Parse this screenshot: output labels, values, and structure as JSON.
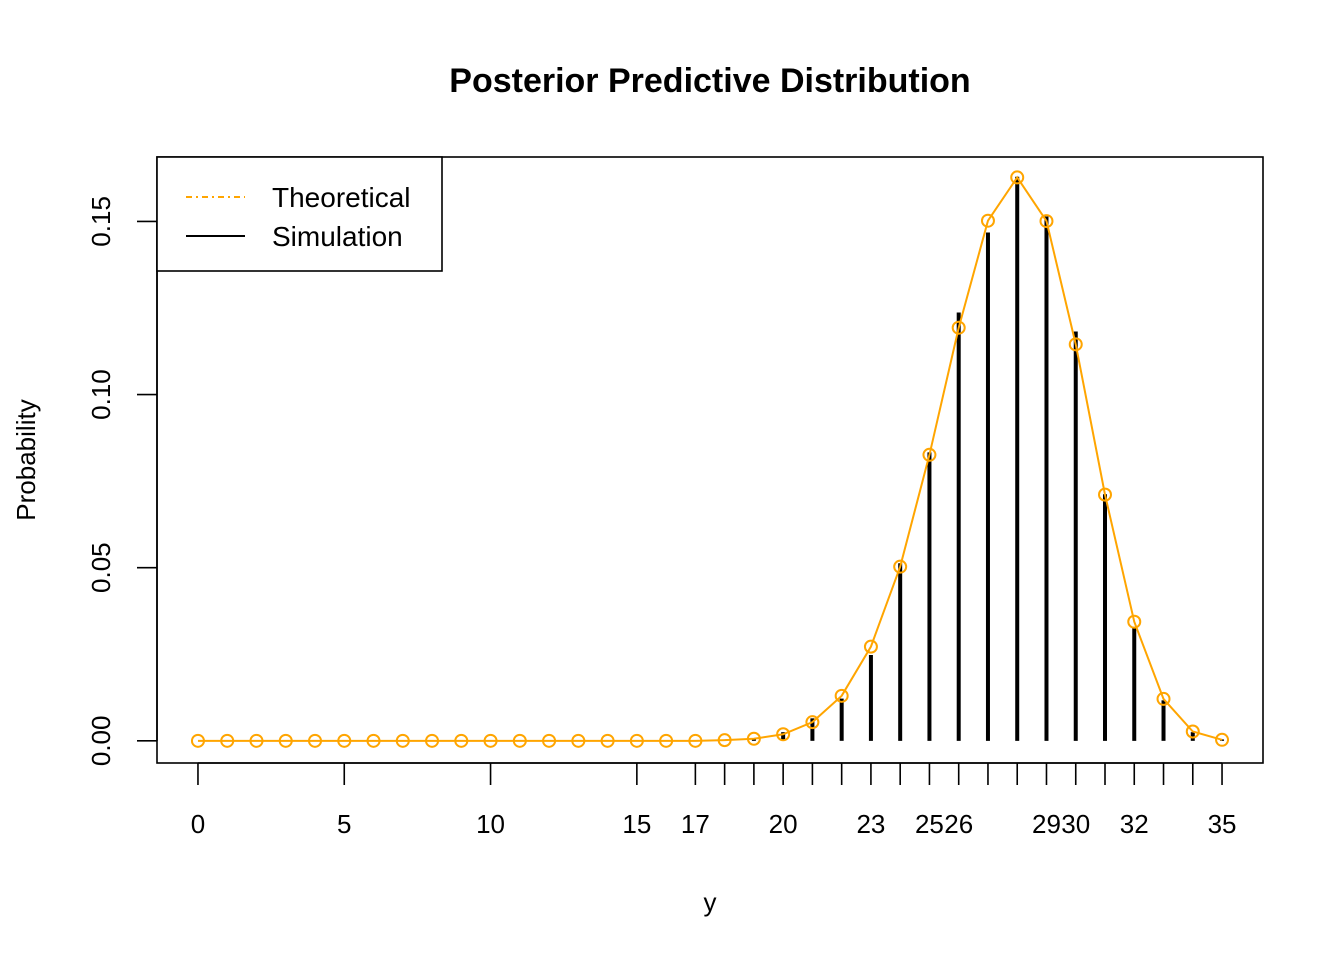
{
  "chart_data": {
    "type": "line",
    "title": "Posterior Predictive Distribution",
    "xlabel": "y",
    "ylabel": "Probability",
    "xlim": [
      -1.4,
      36.4
    ],
    "ylim": [
      -0.0064,
      0.1686
    ],
    "x_ticks": [
      0,
      5,
      10,
      15,
      17,
      18,
      19,
      20,
      21,
      22,
      23,
      24,
      25,
      26,
      27,
      28,
      29,
      30,
      31,
      32,
      33,
      34,
      35
    ],
    "x_tick_labels": [
      "0",
      "5",
      "10",
      "15",
      "17",
      "",
      "",
      "20",
      "",
      "",
      "23",
      "",
      "25",
      "26",
      "",
      "",
      "29",
      "30",
      "",
      "32",
      "",
      "",
      "35"
    ],
    "y_ticks": [
      0.0,
      0.05,
      0.1,
      0.15
    ],
    "y_tick_labels": [
      "0.00",
      "0.05",
      "0.10",
      "0.15"
    ],
    "grid": false,
    "legend_position": "top-left",
    "legend": [
      {
        "label": "Theoretical",
        "style": "dash-dot",
        "color": "#FFA500"
      },
      {
        "label": "Simulation",
        "style": "solid",
        "color": "#000000"
      }
    ],
    "series": [
      {
        "name": "Theoretical",
        "color": "#FFA500",
        "marker": "open-circle",
        "x": [
          0,
          1,
          2,
          3,
          4,
          5,
          6,
          7,
          8,
          9,
          10,
          11,
          12,
          13,
          14,
          15,
          16,
          17,
          18,
          19,
          20,
          21,
          22,
          23,
          24,
          25,
          26,
          27,
          28,
          29,
          30,
          31,
          32,
          33,
          34,
          35
        ],
        "y": [
          0,
          0,
          0,
          0,
          0,
          0,
          0,
          0,
          0,
          0,
          0,
          0,
          0,
          0,
          0,
          0,
          0,
          0,
          0.0002,
          0.0006,
          0.0019,
          0.0054,
          0.013,
          0.0272,
          0.0503,
          0.0826,
          0.1193,
          0.1502,
          0.1627,
          0.1501,
          0.1145,
          0.0711,
          0.0344,
          0.0121,
          0.0027,
          0.0003
        ]
      },
      {
        "name": "Simulation",
        "color": "#000000",
        "marker": "vertical-bar",
        "x": [
          17,
          18,
          19,
          20,
          21,
          22,
          23,
          24,
          25,
          26,
          27,
          28,
          29,
          30,
          31,
          32,
          33,
          34,
          35
        ],
        "y": [
          0.0002,
          0.0004,
          0.0007,
          0.0025,
          0.0065,
          0.0122,
          0.0248,
          0.0513,
          0.0833,
          0.1237,
          0.1468,
          0.1629,
          0.1514,
          0.1182,
          0.0712,
          0.0329,
          0.0117,
          0.0025,
          0.0004
        ]
      }
    ]
  }
}
